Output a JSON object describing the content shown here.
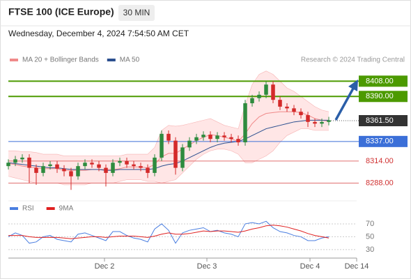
{
  "chart_data": {
    "type": "candlestick",
    "title": "FTSE 100 (ICE Europe)",
    "interval": "30 MIN",
    "subtitle": "Wednesday, December 4, 2024 7:54:50 AM CET",
    "source": "Research © 2024 Trading Central",
    "x": [
      0,
      2,
      4,
      6,
      8,
      10,
      12,
      14,
      16,
      18,
      20,
      22,
      24,
      26,
      28,
      30,
      32,
      34,
      36,
      38,
      40,
      42,
      44,
      46,
      48,
      50,
      52,
      54,
      56,
      58,
      60,
      62,
      64,
      66,
      68,
      70,
      72,
      74,
      76,
      78,
      80,
      82,
      84,
      86,
      88,
      90,
      92
    ],
    "candles": [
      [
        8308,
        8316,
        8304,
        8312
      ],
      [
        8312,
        8320,
        8308,
        8316
      ],
      [
        8316,
        8322,
        8312,
        8318
      ],
      [
        8318,
        8322,
        8288,
        8306
      ],
      [
        8306,
        8310,
        8286,
        8300
      ],
      [
        8300,
        8312,
        8296,
        8308
      ],
      [
        8308,
        8314,
        8304,
        8310
      ],
      [
        8310,
        8314,
        8300,
        8305
      ],
      [
        8305,
        8309,
        8296,
        8302
      ],
      [
        8302,
        8306,
        8280,
        8296
      ],
      [
        8296,
        8312,
        8292,
        8308
      ],
      [
        8308,
        8316,
        8304,
        8312
      ],
      [
        8312,
        8316,
        8306,
        8310
      ],
      [
        8310,
        8314,
        8302,
        8306
      ],
      [
        8306,
        8310,
        8284,
        8300
      ],
      [
        8300,
        8316,
        8296,
        8312
      ],
      [
        8312,
        8318,
        8308,
        8314
      ],
      [
        8314,
        8318,
        8306,
        8310
      ],
      [
        8310,
        8314,
        8304,
        8308
      ],
      [
        8308,
        8312,
        8302,
        8306
      ],
      [
        8306,
        8310,
        8294,
        8300
      ],
      [
        8300,
        8322,
        8296,
        8318
      ],
      [
        8318,
        8350,
        8314,
        8346
      ],
      [
        8346,
        8350,
        8334,
        8338
      ],
      [
        8338,
        8342,
        8298,
        8306
      ],
      [
        8306,
        8334,
        8302,
        8330
      ],
      [
        8330,
        8342,
        8326,
        8338
      ],
      [
        8338,
        8346,
        8334,
        8342
      ],
      [
        8342,
        8349,
        8338,
        8345
      ],
      [
        8345,
        8349,
        8336,
        8340
      ],
      [
        8340,
        8348,
        8336,
        8344
      ],
      [
        8344,
        8348,
        8338,
        8342
      ],
      [
        8342,
        8346,
        8336,
        8340
      ],
      [
        8340,
        8344,
        8332,
        8336
      ],
      [
        8336,
        8386,
        8332,
        8382
      ],
      [
        8382,
        8392,
        8378,
        8388
      ],
      [
        8388,
        8396,
        8384,
        8392
      ],
      [
        8392,
        8408,
        8388,
        8404
      ],
      [
        8404,
        8408,
        8382,
        8386
      ],
      [
        8386,
        8390,
        8374,
        8378
      ],
      [
        8378,
        8382,
        8372,
        8376
      ],
      [
        8376,
        8380,
        8368,
        8372
      ],
      [
        8372,
        8376,
        8364,
        8368
      ],
      [
        8368,
        8372,
        8354,
        8360
      ],
      [
        8360,
        8364,
        8354,
        8358
      ],
      [
        8358,
        8364,
        8354,
        8360
      ],
      [
        8360,
        8366,
        8356,
        8362
      ]
    ],
    "up_color": "#2e8b3e",
    "down_color": "#d42a2a",
    "overlays": [
      {
        "name": "MA 20 + Bollinger Bands",
        "color": "#f08a8a",
        "values": [
          8311,
          8310,
          8308,
          8307,
          8306,
          8305,
          8305,
          8305,
          8303,
          8303,
          8303,
          8303,
          8304,
          8304,
          8304,
          8304,
          8305,
          8307,
          8307,
          8307,
          8306,
          8310,
          8319,
          8323,
          8323,
          8328,
          8333,
          8338,
          8342,
          8345,
          8344,
          8342,
          8340,
          8337,
          8346,
          8358,
          8366,
          8370,
          8371,
          8372,
          8372,
          8372,
          8371,
          8368,
          8364,
          8362,
          8361
        ],
        "upper": [
          8326,
          8326,
          8325,
          8325,
          8324,
          8322,
          8322,
          8322,
          8320,
          8320,
          8320,
          8320,
          8320,
          8320,
          8320,
          8320,
          8320,
          8322,
          8322,
          8322,
          8322,
          8330,
          8350,
          8356,
          8355,
          8356,
          8358,
          8360,
          8362,
          8364,
          8360,
          8356,
          8354,
          8352,
          8380,
          8404,
          8416,
          8420,
          8416,
          8408,
          8400,
          8396,
          8390,
          8384,
          8378,
          8374,
          8372
        ],
        "lower": [
          8296,
          8294,
          8292,
          8290,
          8288,
          8288,
          8288,
          8288,
          8286,
          8286,
          8286,
          8286,
          8288,
          8288,
          8288,
          8288,
          8290,
          8292,
          8292,
          8292,
          8290,
          8290,
          8288,
          8290,
          8292,
          8300,
          8308,
          8316,
          8322,
          8326,
          8328,
          8328,
          8326,
          8322,
          8312,
          8312,
          8316,
          8320,
          8326,
          8336,
          8344,
          8348,
          8352,
          8352,
          8350,
          8350,
          8350
        ]
      },
      {
        "name": "MA 50",
        "color": "#2b4f8f",
        "values": [
          8312,
          8311,
          8310,
          8309,
          8308,
          8307,
          8306,
          8306,
          8305,
          8304,
          8304,
          8304,
          8304,
          8304,
          8303,
          8303,
          8304,
          8304,
          8304,
          8304,
          8304,
          8305,
          8308,
          8310,
          8311,
          8314,
          8318,
          8322,
          8326,
          8330,
          8333,
          8335,
          8336,
          8337,
          8340,
          8344,
          8348,
          8352,
          8354,
          8356,
          8358,
          8360,
          8361,
          8362,
          8362,
          8362,
          8362
        ]
      }
    ],
    "levels": [
      {
        "value": 8408,
        "label": "8408.00",
        "color": "#4c9a00",
        "style": "box"
      },
      {
        "value": 8390,
        "label": "8390.00",
        "color": "#4c9a00",
        "style": "box"
      },
      {
        "value": 8337,
        "label": "8337.00",
        "color": "#3b6fd8",
        "style": "box"
      },
      {
        "value": 8314,
        "label": "8314.00",
        "color": "#e07070",
        "style": "text"
      },
      {
        "value": 8288,
        "label": "8288.00",
        "color": "#e07070",
        "style": "text"
      }
    ],
    "last": {
      "value": 8361.5,
      "label": "8361.50",
      "color": "#333333"
    },
    "xlim": [
      0,
      100
    ],
    "xticks": [
      {
        "value": 27.6,
        "label": "Dec 2"
      },
      {
        "value": 57,
        "label": "Dec 3"
      },
      {
        "value": 86.6,
        "label": "Dec 4"
      },
      {
        "value": 100,
        "label": "Dec 14"
      }
    ],
    "ylim": [
      8272,
      8428
    ],
    "rsi": {
      "ylim": [
        18,
        80
      ],
      "yticks": [
        30,
        50,
        70
      ],
      "series": [
        {
          "name": "RSI",
          "color": "#4a7ee0",
          "values": [
            50,
            56,
            52,
            40,
            42,
            50,
            52,
            46,
            44,
            42,
            54,
            56,
            52,
            48,
            44,
            58,
            58,
            52,
            48,
            46,
            42,
            62,
            70,
            60,
            40,
            56,
            60,
            62,
            64,
            58,
            60,
            56,
            54,
            50,
            70,
            72,
            70,
            74,
            64,
            58,
            56,
            52,
            50,
            44,
            44,
            48,
            50
          ]
        },
        {
          "name": "9MA",
          "color": "#e02020",
          "values": [
            52,
            52,
            52,
            50,
            49,
            49,
            49,
            49,
            48,
            47,
            48,
            49,
            50,
            50,
            49,
            50,
            51,
            51,
            51,
            50,
            49,
            51,
            54,
            56,
            54,
            54,
            55,
            57,
            59,
            58,
            59,
            59,
            58,
            57,
            59,
            62,
            64,
            67,
            68,
            67,
            65,
            62,
            59,
            55,
            52,
            50,
            48
          ]
        }
      ]
    }
  }
}
